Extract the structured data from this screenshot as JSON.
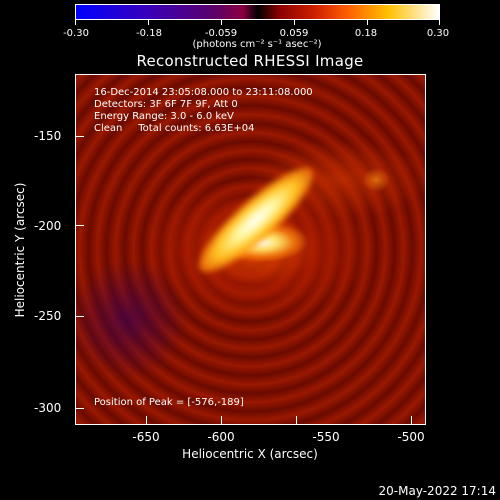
{
  "colorbar": {
    "ticks": [
      "-0.30",
      "-0.18",
      "-0.059",
      "0.059",
      "0.18",
      "0.30"
    ],
    "units": "(photons cm⁻² s⁻¹ asec⁻²)"
  },
  "title": "Reconstructed RHESSI Image",
  "info": {
    "time_range": "16-Dec-2014 23:05:08.000 to 23:11:08.000",
    "detectors": "Detectors: 3F 6F 7F 9F, Att 0",
    "energy": "Energy Range: 3.0 - 6.0 keV",
    "clean": "Clean     Total counts: 6.63E+04",
    "peak": "Position of Peak = [-576,-189]"
  },
  "axes": {
    "xlabel": "Heliocentric X (arcsec)",
    "ylabel": "Heliocentric Y (arcsec)",
    "xticks": [
      "-650",
      "-600",
      "-550",
      "-500"
    ],
    "yticks": [
      "-150",
      "-200",
      "-250",
      "-300"
    ]
  },
  "timestamp": "20-May-2022 17:14"
}
